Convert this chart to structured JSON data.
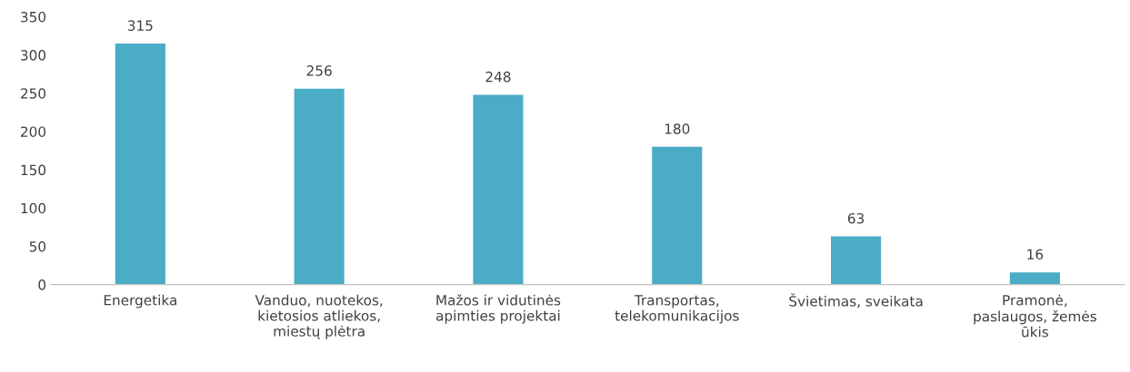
{
  "chart_data": {
    "type": "bar",
    "categories": [
      "Energetika",
      "Vanduo, nuotekos,\nkietosios atliekos,\nmiestų plėtra",
      "Mažos ir vidutinės\napimties projektai",
      "Transportas,\ntelekomunikacijos",
      "Švietimas, sveikata",
      "Pramonė,\npaslaugos, žemės\nūkis"
    ],
    "values": [
      315,
      256,
      248,
      180,
      63,
      16
    ],
    "color": "#4bacc6",
    "ylim": [
      0,
      350
    ],
    "yticks": [
      0,
      50,
      100,
      150,
      200,
      250,
      300,
      350
    ],
    "data_labels": true,
    "grid": false,
    "legend": false
  }
}
